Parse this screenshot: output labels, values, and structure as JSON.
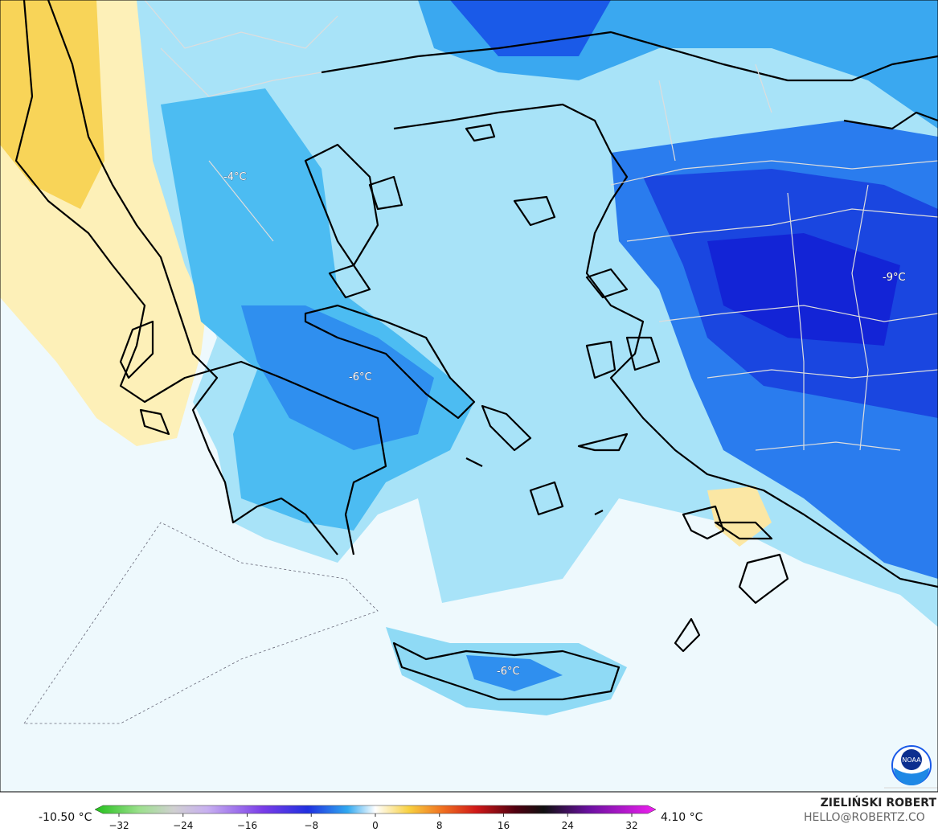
{
  "map": {
    "labels": [
      "-4°C",
      "-6°C",
      "-9°C",
      "-6°C"
    ],
    "logo": "NOAA"
  },
  "colorbar": {
    "min_label": "-10.50 °C",
    "max_label": "4.10 °C",
    "ticks": [
      "−32",
      "−24",
      "−16",
      "−8",
      "0",
      "8",
      "16",
      "24",
      "32"
    ]
  },
  "credits": {
    "author": "ZIELIŃSKI ROBERT",
    "contact": "HELLO@ROBERTZ.CO"
  }
}
